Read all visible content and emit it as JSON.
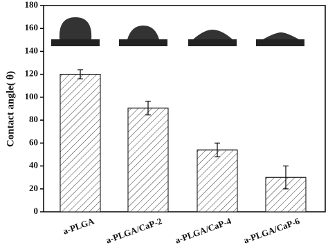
{
  "chart_data": {
    "type": "bar",
    "y_label": "Contact angle( θ)",
    "categories": [
      "a-PLGA",
      "a-PLGA/CaP-2",
      "a-PLGA/CaP-4",
      "a-PLGA/CaP-6"
    ],
    "values": [
      120,
      90.5,
      54,
      30
    ],
    "errors": [
      4,
      6,
      6,
      10
    ],
    "color": "#ffffff",
    "ylim": [
      0,
      180
    ],
    "yticks": [
      0,
      20,
      40,
      60,
      80,
      100,
      120,
      140,
      160,
      180
    ]
  }
}
